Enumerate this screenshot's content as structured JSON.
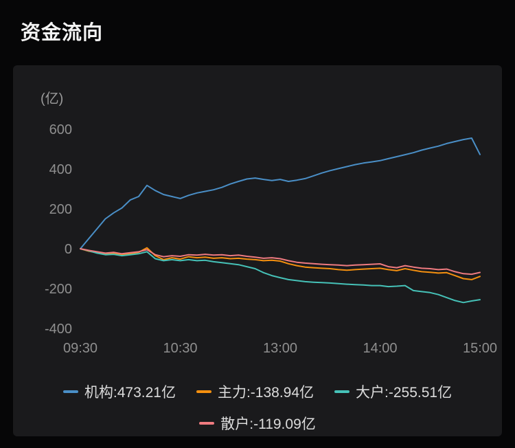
{
  "page": {
    "title": "资金流向"
  },
  "chart_data": {
    "type": "line",
    "title": "资金流向",
    "ylabel": "(亿)",
    "ylim": [
      -400,
      600
    ],
    "yticks": [
      600,
      400,
      200,
      0,
      -200,
      -400
    ],
    "grid": false,
    "legend_position": "bottom",
    "x_axis": {
      "unit": "trading-minutes-from-09:30",
      "range": [
        0,
        240
      ],
      "ticks": [
        {
          "t": 0,
          "label": "09:30"
        },
        {
          "t": 60,
          "label": "10:30"
        },
        {
          "t": 120,
          "label": "13:00"
        },
        {
          "t": 180,
          "label": "14:00"
        },
        {
          "t": 240,
          "label": "15:00"
        }
      ]
    },
    "x": [
      0,
      5,
      10,
      15,
      20,
      25,
      30,
      35,
      40,
      45,
      50,
      55,
      60,
      65,
      70,
      75,
      80,
      85,
      90,
      95,
      100,
      105,
      110,
      115,
      120,
      125,
      130,
      135,
      140,
      145,
      150,
      155,
      160,
      165,
      170,
      175,
      180,
      185,
      190,
      195,
      200,
      205,
      210,
      215,
      220,
      225,
      230,
      235,
      240
    ],
    "series": [
      {
        "name": "机构",
        "color": "#4a8fc7",
        "final_value": 473.21,
        "legend_label": "机构:473.21亿",
        "values": [
          0,
          50,
          100,
          150,
          180,
          205,
          245,
          262,
          318,
          292,
          272,
          262,
          252,
          268,
          280,
          288,
          296,
          308,
          325,
          338,
          350,
          355,
          348,
          342,
          348,
          338,
          344,
          352,
          366,
          380,
          392,
          402,
          412,
          422,
          430,
          436,
          442,
          452,
          462,
          472,
          482,
          495,
          505,
          515,
          528,
          538,
          548,
          555,
          473.21
        ]
      },
      {
        "name": "主力",
        "color": "#f5900f",
        "final_value": -138.94,
        "legend_label": "主力:-138.94亿",
        "values": [
          0,
          -12,
          -20,
          -28,
          -22,
          -30,
          -25,
          -18,
          5,
          -35,
          -55,
          -45,
          -52,
          -40,
          -45,
          -42,
          -48,
          -45,
          -50,
          -48,
          -52,
          -55,
          -60,
          -58,
          -62,
          -75,
          -85,
          -92,
          -95,
          -98,
          -100,
          -105,
          -108,
          -105,
          -102,
          -100,
          -98,
          -105,
          -110,
          -100,
          -108,
          -115,
          -118,
          -122,
          -120,
          -135,
          -150,
          -155,
          -138.94
        ]
      },
      {
        "name": "大户",
        "color": "#46c2b8",
        "final_value": -255.51,
        "legend_label": "大户:-255.51亿",
        "values": [
          0,
          -10,
          -22,
          -30,
          -28,
          -35,
          -30,
          -25,
          -15,
          -50,
          -60,
          -55,
          -60,
          -55,
          -60,
          -58,
          -65,
          -70,
          -75,
          -80,
          -90,
          -100,
          -120,
          -135,
          -145,
          -155,
          -160,
          -165,
          -168,
          -170,
          -172,
          -175,
          -178,
          -180,
          -182,
          -185,
          -185,
          -190,
          -188,
          -185,
          -210,
          -215,
          -220,
          -230,
          -245,
          -260,
          -270,
          -262,
          -255.51
        ]
      },
      {
        "name": "散户",
        "color": "#ef7b80",
        "final_value": -119.09,
        "legend_label": "散户:-119.09亿",
        "values": [
          0,
          -8,
          -15,
          -22,
          -18,
          -25,
          -20,
          -15,
          -5,
          -30,
          -40,
          -35,
          -38,
          -30,
          -32,
          -28,
          -32,
          -30,
          -35,
          -32,
          -38,
          -42,
          -48,
          -45,
          -50,
          -60,
          -68,
          -72,
          -75,
          -78,
          -80,
          -82,
          -85,
          -82,
          -80,
          -78,
          -76,
          -90,
          -95,
          -85,
          -92,
          -98,
          -100,
          -105,
          -102,
          -115,
          -125,
          -128,
          -119.09
        ]
      }
    ],
    "legend_rows": [
      [
        "机构",
        "主力",
        "大户"
      ],
      [
        "散户"
      ]
    ]
  }
}
